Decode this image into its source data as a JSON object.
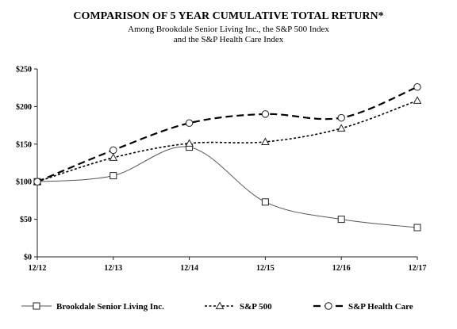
{
  "chart_data": {
    "type": "line",
    "title": "COMPARISON OF 5 YEAR CUMULATIVE TOTAL RETURN*",
    "subtitle_lines": [
      "Among Brookdale Senior Living Inc., the S&P 500 Index",
      "and the S&P Health Care Index"
    ],
    "categories": [
      "12/12",
      "12/13",
      "12/14",
      "12/15",
      "12/16",
      "12/17"
    ],
    "y_ticks": [
      "$0",
      "$50",
      "$100",
      "$150",
      "$200",
      "$250"
    ],
    "ylim": [
      0,
      250
    ],
    "grid": false,
    "legend_position": "bottom",
    "series": [
      {
        "name": "Brookdale Senior Living Inc.",
        "values": [
          100,
          108,
          146,
          73,
          50,
          39
        ],
        "dash": "solid",
        "marker": "square",
        "stroke": "#555555"
      },
      {
        "name": "S&P 500",
        "values": [
          100,
          132,
          151,
          153,
          171,
          208
        ],
        "dash": "dotted",
        "marker": "triangle",
        "stroke": "#000000"
      },
      {
        "name": "S&P Health Care",
        "values": [
          100,
          142,
          178,
          190,
          185,
          226
        ],
        "dash": "dashed",
        "marker": "circle",
        "stroke": "#000000"
      }
    ]
  }
}
